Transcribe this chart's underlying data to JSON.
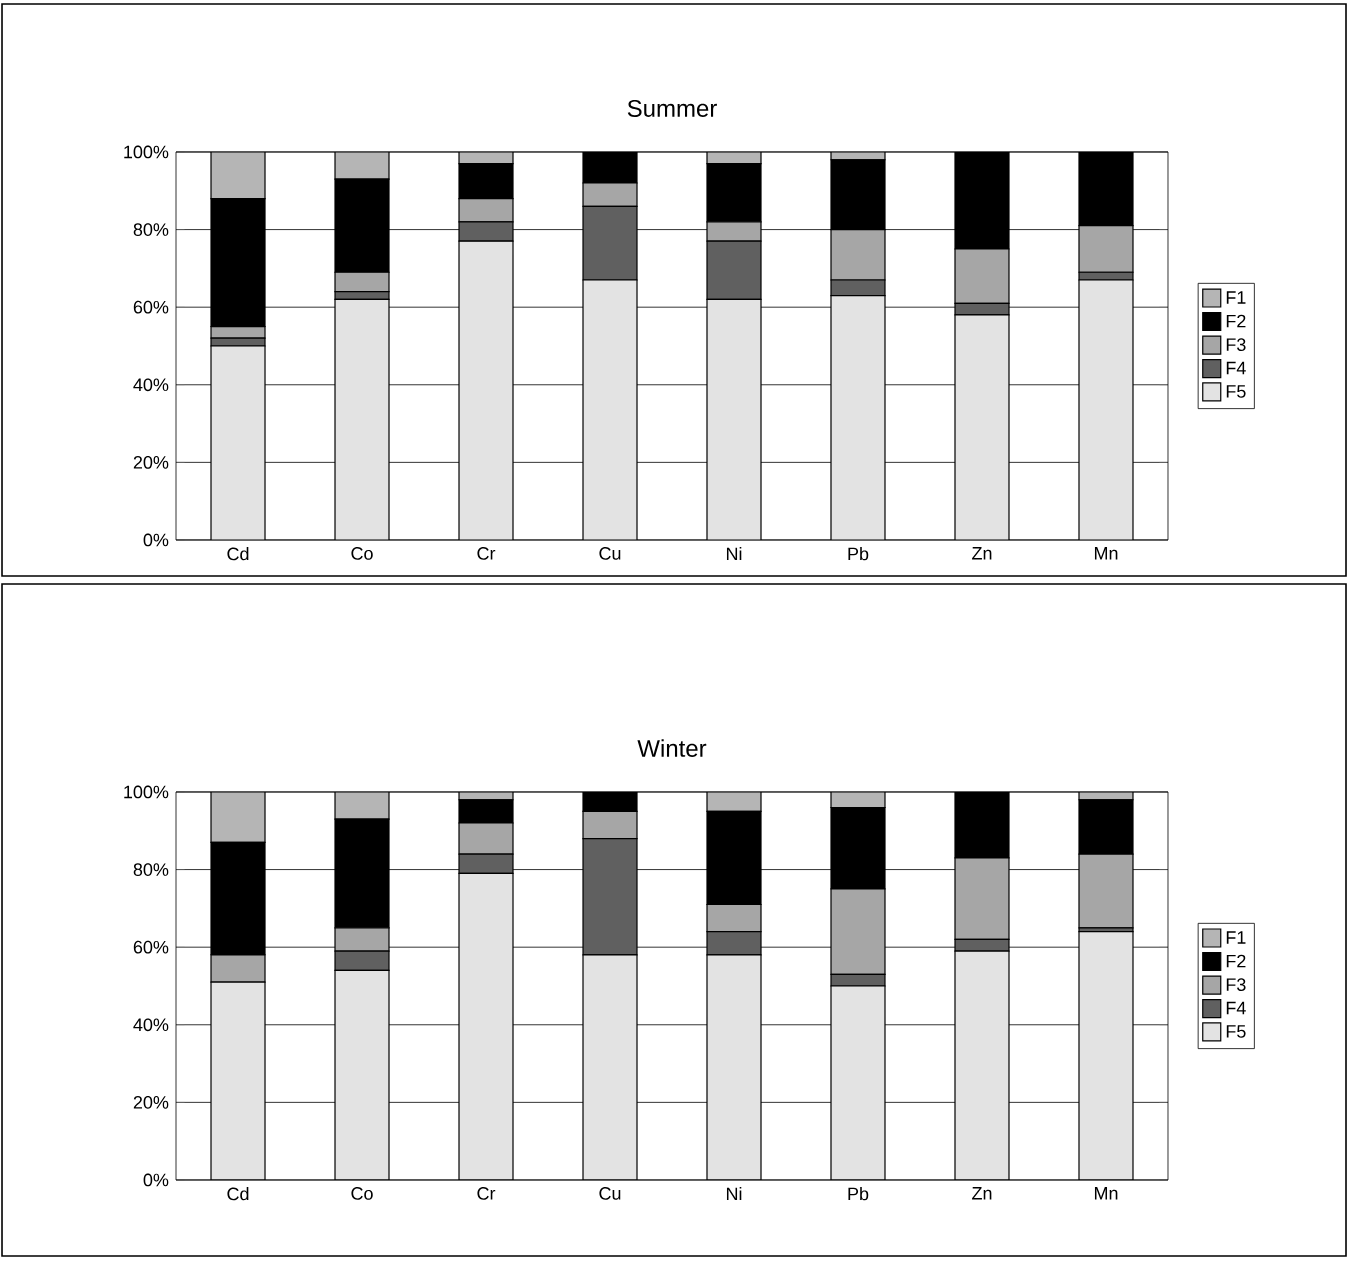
{
  "chart_data": [
    {
      "type": "bar",
      "title": "Summer",
      "stacked": true,
      "grid": "y",
      "legend": "right",
      "categories": [
        "Cd",
        "Co",
        "Cr",
        "Cu",
        "Ni",
        "Pb",
        "Zn",
        "Mn"
      ],
      "ylim": [
        0,
        100
      ],
      "yticks": [
        {
          "value": 0,
          "label": "0%"
        },
        {
          "value": 20,
          "label": "20%"
        },
        {
          "value": 40,
          "label": "40%"
        },
        {
          "value": 60,
          "label": "60%"
        },
        {
          "value": 80,
          "label": "80%"
        },
        {
          "value": 100,
          "label": "100%"
        }
      ],
      "series": [
        {
          "name": "F5",
          "color": "#e3e3e3",
          "values": [
            50,
            62,
            77,
            67,
            62,
            63,
            58,
            67
          ]
        },
        {
          "name": "F4",
          "color": "#606060",
          "values": [
            2,
            2,
            5,
            19,
            15,
            4,
            3,
            2
          ]
        },
        {
          "name": "F3",
          "color": "#a6a6a6",
          "values": [
            3,
            5,
            6,
            6,
            5,
            13,
            14,
            12
          ]
        },
        {
          "name": "F2",
          "color": "#000000",
          "values": [
            33,
            24,
            9,
            8,
            15,
            18,
            25,
            19
          ]
        },
        {
          "name": "F1",
          "color": "#b5b5b5",
          "values": [
            12,
            7,
            3,
            0,
            3,
            2,
            0,
            0
          ]
        }
      ]
    },
    {
      "type": "bar",
      "title": "Winter",
      "stacked": true,
      "grid": "y",
      "legend": "right",
      "categories": [
        "Cd",
        "Co",
        "Cr",
        "Cu",
        "Ni",
        "Pb",
        "Zn",
        "Mn"
      ],
      "ylim": [
        0,
        100
      ],
      "yticks": [
        {
          "value": 0,
          "label": "0%"
        },
        {
          "value": 20,
          "label": "20%"
        },
        {
          "value": 40,
          "label": "40%"
        },
        {
          "value": 60,
          "label": "60%"
        },
        {
          "value": 80,
          "label": "80%"
        },
        {
          "value": 100,
          "label": "100%"
        }
      ],
      "series": [
        {
          "name": "F5",
          "color": "#e3e3e3",
          "values": [
            51,
            54,
            79,
            58,
            58,
            50,
            59,
            64
          ]
        },
        {
          "name": "F4",
          "color": "#606060",
          "values": [
            0,
            5,
            5,
            30,
            6,
            3,
            3,
            1
          ]
        },
        {
          "name": "F3",
          "color": "#a6a6a6",
          "values": [
            7,
            6,
            8,
            7,
            7,
            22,
            21,
            19
          ]
        },
        {
          "name": "F2",
          "color": "#000000",
          "values": [
            29,
            28,
            6,
            5,
            24,
            21,
            17,
            14
          ]
        },
        {
          "name": "F1",
          "color": "#b5b5b5",
          "values": [
            13,
            7,
            2,
            0,
            5,
            4,
            0,
            2
          ]
        }
      ]
    }
  ]
}
